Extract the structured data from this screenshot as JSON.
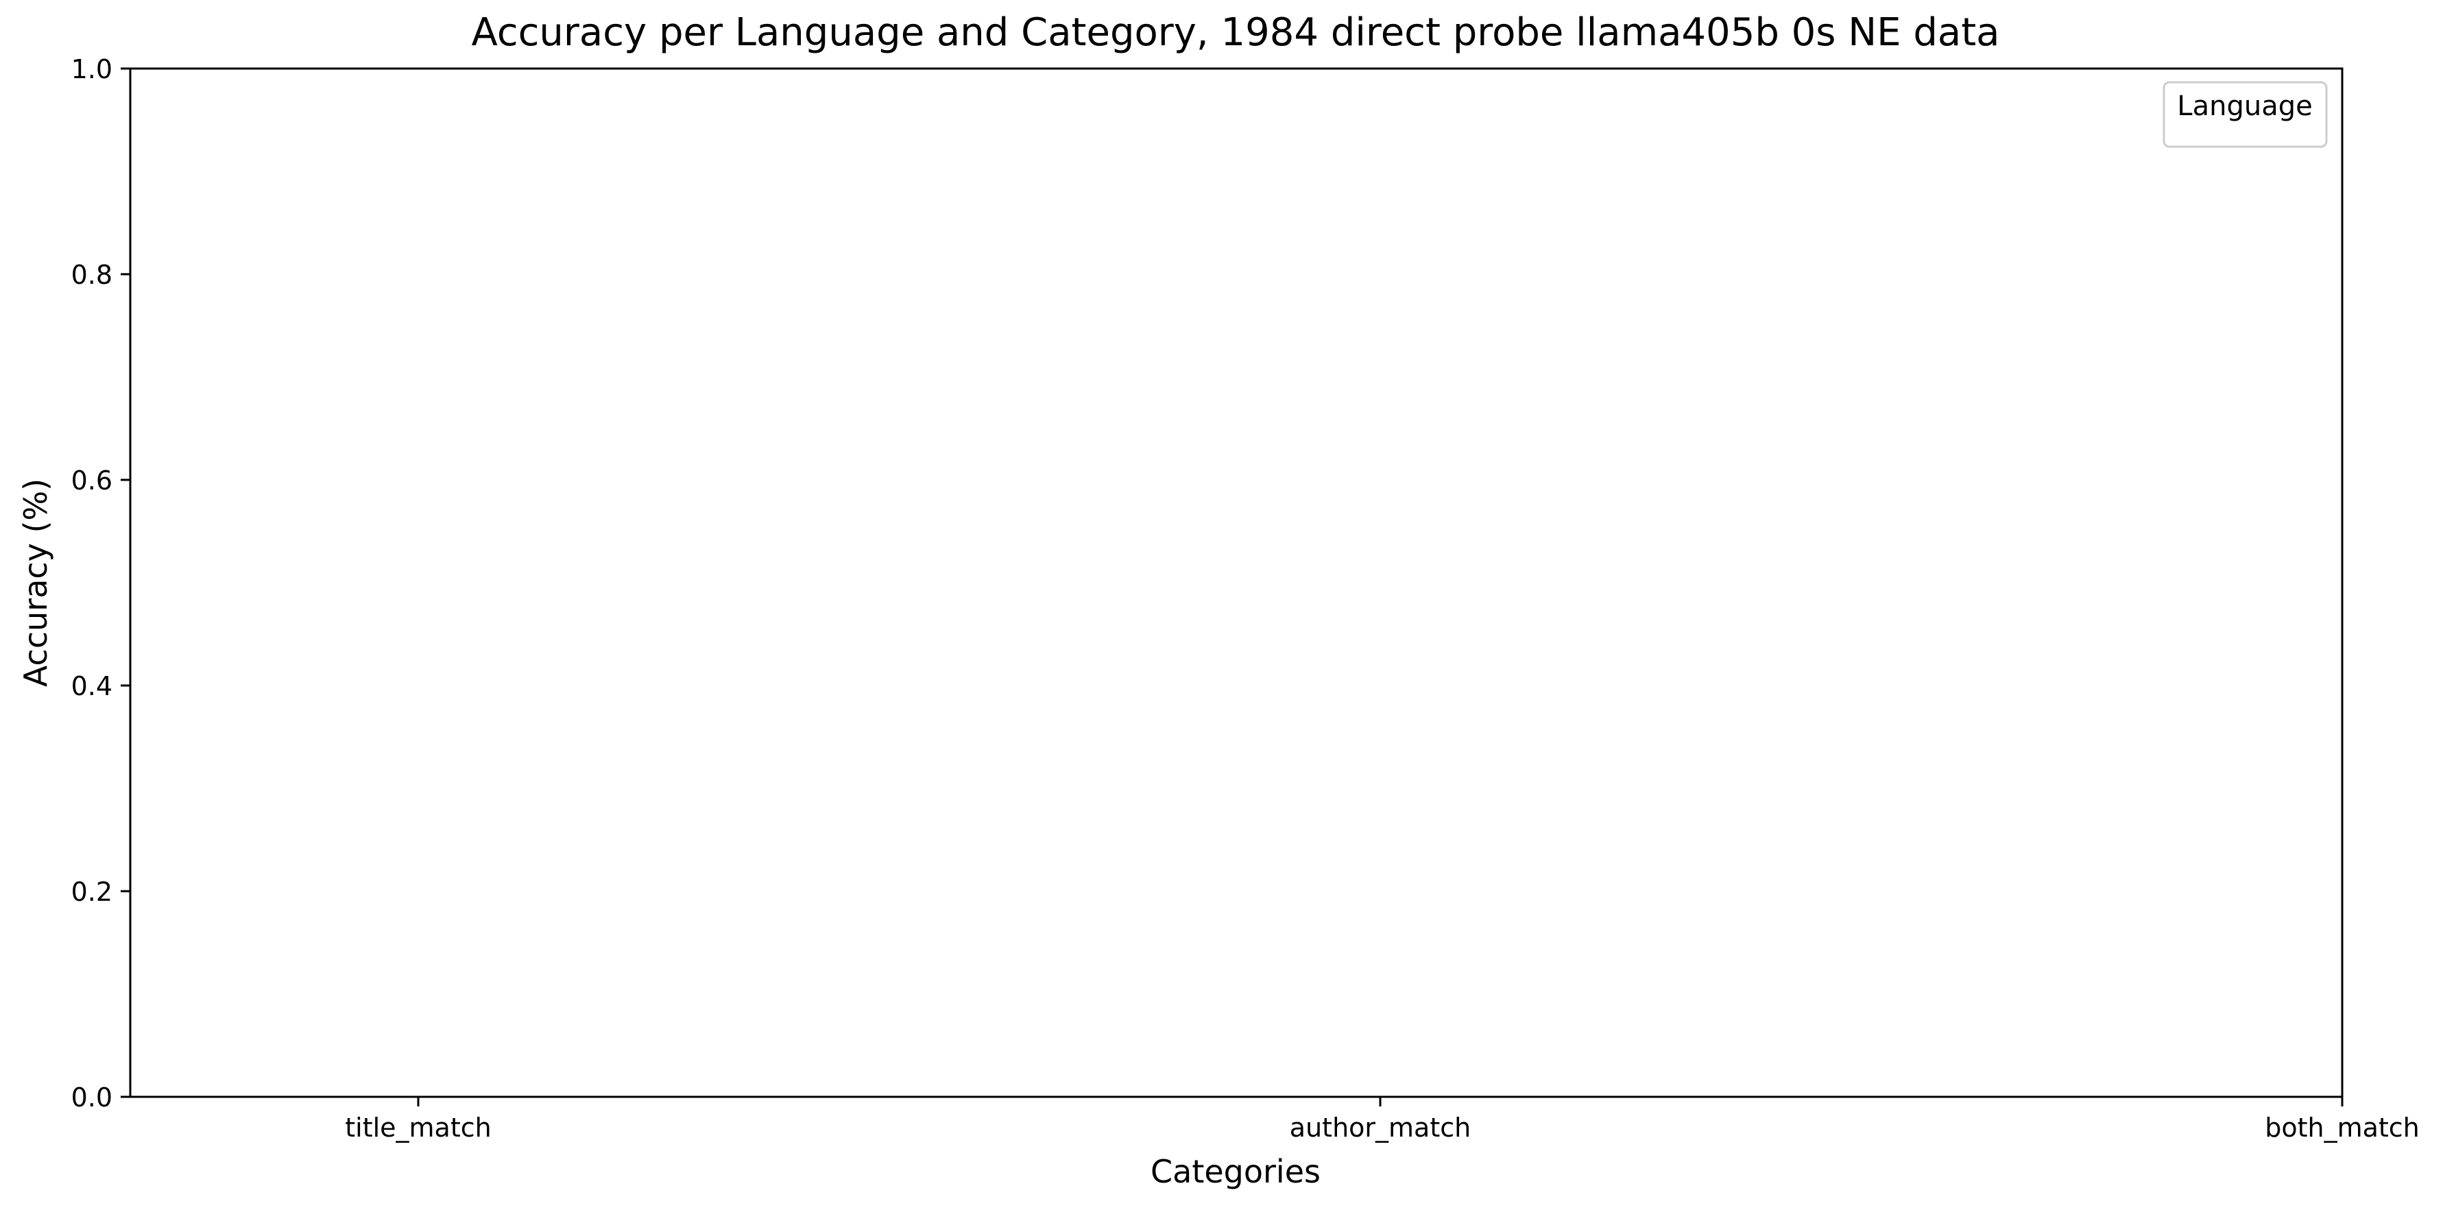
{
  "chart_data": {
    "type": "bar",
    "title": "Accuracy per Language and Category, 1984 direct probe llama405b 0s NE data",
    "xlabel": "Categories",
    "ylabel": "Accuracy (%)",
    "categories": [
      "title_match",
      "author_match",
      "both_match"
    ],
    "ylim": [
      0,
      1.0
    ],
    "yticks": [
      "0.0",
      "0.2",
      "0.4",
      "0.6",
      "0.8",
      "1.0"
    ],
    "grid": false,
    "series": [],
    "legend": {
      "title": "Language",
      "entries": [],
      "placement": "top-right"
    }
  }
}
